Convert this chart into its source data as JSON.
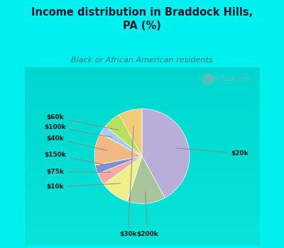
{
  "title": "Income distribution in Braddock Hills,\nPA (%)",
  "subtitle": "Black or African American residents",
  "labels": [
    "$20k",
    "$200k",
    "$10k",
    "$75k",
    "$150k",
    "$40k",
    "$100k",
    "$60k",
    "$30k"
  ],
  "sizes": [
    42,
    13,
    10,
    4,
    3,
    11,
    3,
    6,
    8
  ],
  "colors": [
    "#b8aed8",
    "#a8c49a",
    "#eef08a",
    "#f4a8a8",
    "#8090d0",
    "#f0b884",
    "#a8cce8",
    "#b8e060",
    "#f0cc78"
  ],
  "bg_color": "#00f0f0",
  "chart_bg": "#c8e8d0",
  "title_color": "#1a1a2e",
  "subtitle_color": "#2a7a7a",
  "label_color": "#1a1a1a",
  "watermark": "City-Data.com",
  "startangle": 90
}
